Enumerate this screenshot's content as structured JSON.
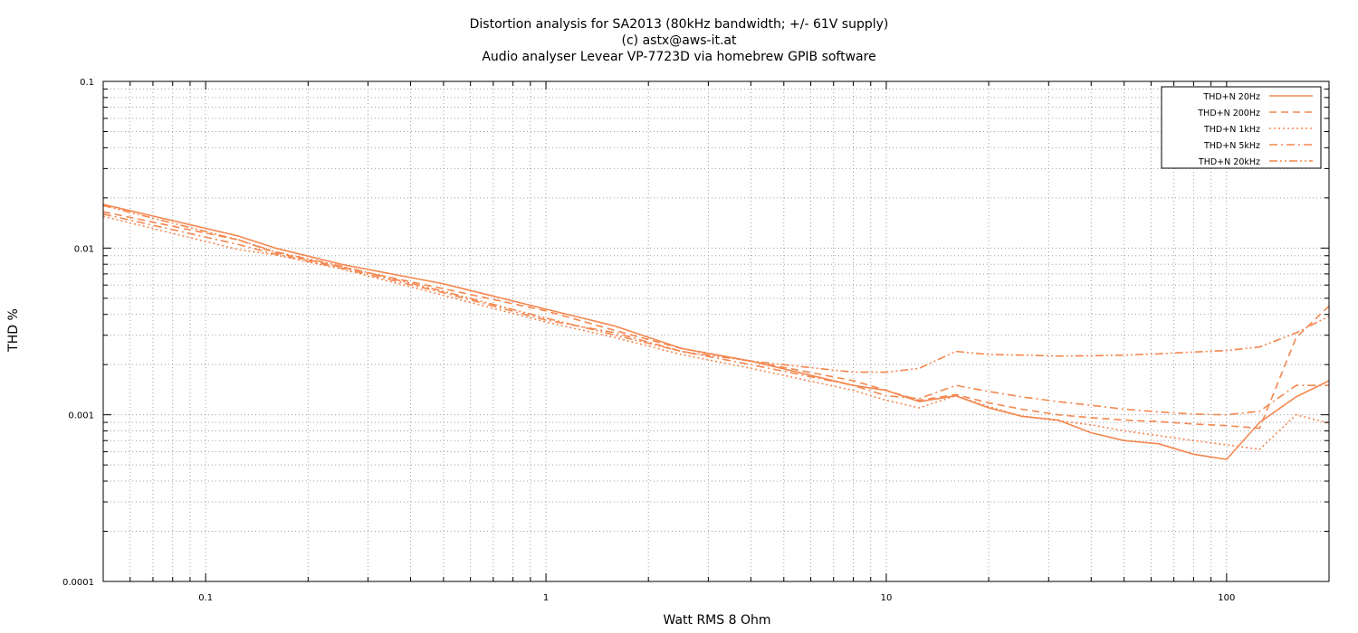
{
  "chart_data": {
    "type": "line",
    "title_lines": [
      "Distortion analysis for SA2013 (80kHz bandwidth; +/- 61V supply)",
      "(c) astx@aws-it.at",
      "Audio analyser Levear VP-7723D via homebrew GPIB software"
    ],
    "xlabel": "Watt RMS 8 Ohm",
    "ylabel": "THD %",
    "x_scale": "log",
    "y_scale": "log",
    "xlim": [
      0.05,
      200
    ],
    "ylim": [
      0.0001,
      0.1
    ],
    "x_ticks": [
      {
        "value": 0.1,
        "label": "0.1"
      },
      {
        "value": 1,
        "label": "1"
      },
      {
        "value": 10,
        "label": "10"
      },
      {
        "value": 100,
        "label": "100"
      }
    ],
    "y_ticks": [
      {
        "value": 0.1,
        "label": "0.1"
      },
      {
        "value": 0.01,
        "label": "0.01"
      },
      {
        "value": 0.001,
        "label": "0.001"
      },
      {
        "value": 0.0001,
        "label": "0.0001"
      }
    ],
    "grid": true,
    "legend_position": "top-right",
    "series": [
      {
        "name": "THD+N 20Hz",
        "dash": "solid",
        "x": [
          0.05,
          0.125,
          0.16,
          0.25,
          0.5,
          1,
          1.6,
          2.5,
          4,
          8,
          10,
          12.5,
          16,
          20,
          25,
          32,
          40,
          50,
          63,
          80,
          100,
          125,
          160,
          200
        ],
        "y": [
          0.0183,
          0.0118,
          0.01,
          0.008,
          0.0061,
          0.0043,
          0.0034,
          0.0025,
          0.0021,
          0.0015,
          0.0014,
          0.0012,
          0.0013,
          0.0011,
          0.00098,
          0.00093,
          0.00078,
          0.0007,
          0.00067,
          0.00058,
          0.00054,
          0.0009,
          0.00128,
          0.0016
        ]
      },
      {
        "name": "THD+N 200Hz",
        "dash": "dashed",
        "x": [
          0.05,
          0.125,
          0.16,
          0.25,
          0.5,
          1,
          1.6,
          2.5,
          4,
          8,
          10,
          12.5,
          16,
          20,
          25,
          32,
          40,
          50,
          63,
          80,
          100,
          125,
          160,
          200
        ],
        "y": [
          0.0165,
          0.0112,
          0.0094,
          0.0077,
          0.0057,
          0.0042,
          0.0032,
          0.0025,
          0.0021,
          0.0016,
          0.0014,
          0.00122,
          0.00132,
          0.00118,
          0.00108,
          0.001,
          0.00096,
          0.00093,
          0.00091,
          0.00088,
          0.00086,
          0.00083,
          0.0029,
          0.0045
        ]
      },
      {
        "name": "THD+N 1kHz",
        "dash": "dotted",
        "x": [
          0.05,
          0.125,
          0.16,
          0.25,
          0.5,
          1,
          1.6,
          2.5,
          4,
          8,
          10,
          12.5,
          16,
          20,
          25,
          32,
          40,
          50,
          63,
          80,
          100,
          125,
          160,
          200
        ],
        "y": [
          0.0155,
          0.0098,
          0.0091,
          0.0075,
          0.0052,
          0.0036,
          0.0029,
          0.0023,
          0.0019,
          0.0014,
          0.00122,
          0.0011,
          0.0013,
          0.00112,
          0.00098,
          0.00092,
          0.00087,
          0.0008,
          0.00075,
          0.0007,
          0.00066,
          0.00062,
          0.001,
          0.00089
        ]
      },
      {
        "name": "THD+N 5kHz",
        "dash": "dashdot",
        "x": [
          0.05,
          0.125,
          0.16,
          0.25,
          0.5,
          1,
          1.6,
          2.5,
          4,
          8,
          10,
          12.5,
          16,
          20,
          25,
          32,
          40,
          50,
          63,
          80,
          100,
          125,
          160,
          200
        ],
        "y": [
          0.016,
          0.0105,
          0.0092,
          0.0076,
          0.0054,
          0.0037,
          0.0031,
          0.0024,
          0.002,
          0.0015,
          0.0013,
          0.00125,
          0.0015,
          0.00138,
          0.00128,
          0.0012,
          0.00114,
          0.00108,
          0.00104,
          0.00101,
          0.001,
          0.00105,
          0.0015,
          0.0015
        ]
      },
      {
        "name": "THD+N 20kHz",
        "dash": "dashdotdot",
        "x": [
          0.05,
          0.125,
          0.16,
          0.25,
          0.5,
          1,
          1.6,
          2.5,
          4,
          8,
          10,
          12.5,
          16,
          20,
          25,
          32,
          40,
          50,
          63,
          80,
          100,
          125,
          160,
          200
        ],
        "y": [
          0.018,
          0.0112,
          0.0095,
          0.0078,
          0.0055,
          0.0038,
          0.003,
          0.0024,
          0.0021,
          0.0018,
          0.0018,
          0.0019,
          0.0024,
          0.0023,
          0.00228,
          0.00225,
          0.00226,
          0.00228,
          0.00232,
          0.00238,
          0.00243,
          0.00255,
          0.0031,
          0.0039
        ]
      }
    ],
    "colors": {
      "series": "#f4874f",
      "axis": "#000000",
      "grid": "#a0a0a0",
      "background": "#ffffff"
    }
  }
}
